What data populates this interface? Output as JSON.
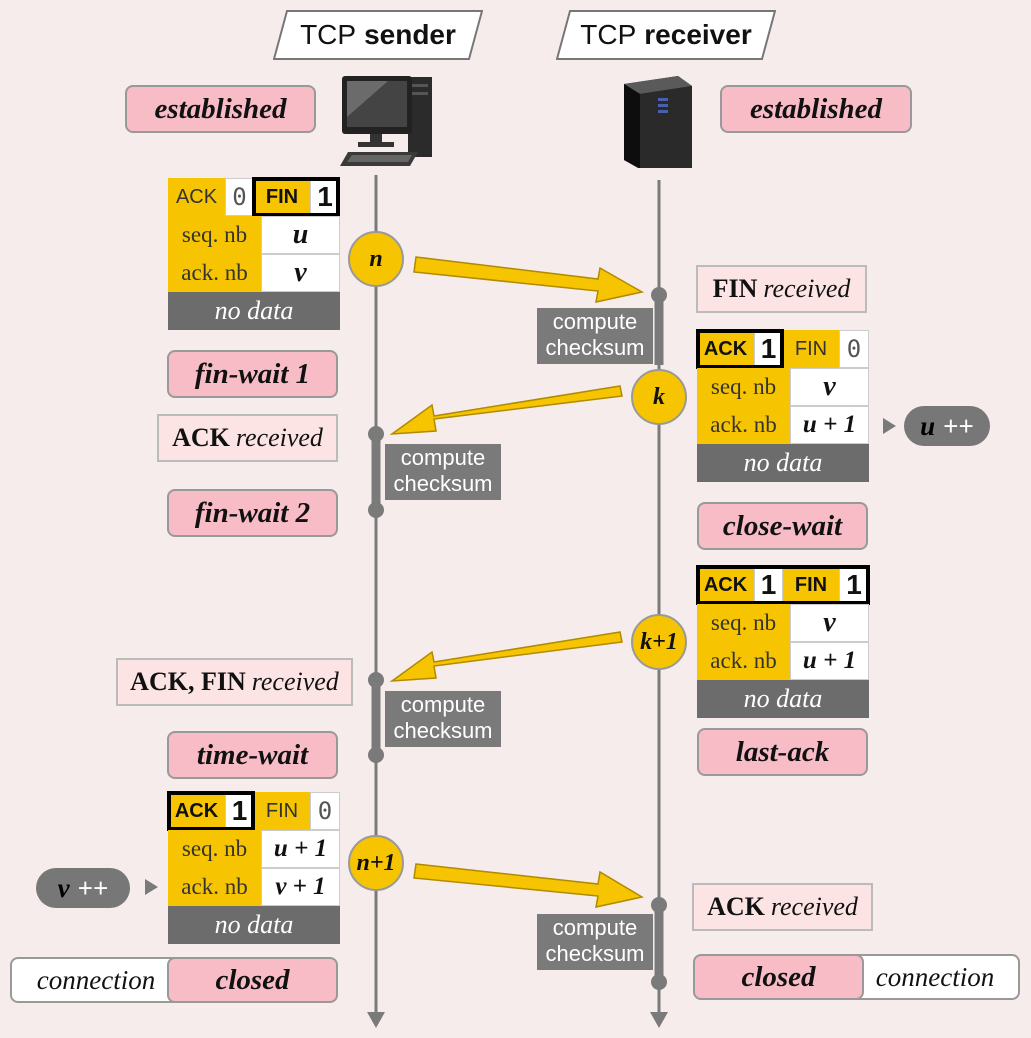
{
  "header": {
    "sender_prefix": "TCP",
    "sender_role": "sender",
    "receiver_prefix": "TCP",
    "receiver_role": "receiver"
  },
  "states": {
    "sender_established": "established",
    "receiver_established": "established",
    "fin_wait_1": "fin-wait 1",
    "fin_wait_2": "fin-wait 2",
    "close_wait": "close-wait",
    "time_wait": "time-wait",
    "last_ack": "last-ack",
    "sender_closed": "closed",
    "receiver_closed": "closed"
  },
  "connection_label": "connection",
  "received": {
    "fin": {
      "flag": "FIN",
      "word": "received"
    },
    "ack": {
      "flag": "ACK",
      "word": "received"
    },
    "ackfin": {
      "flag": "ACK, FIN",
      "word": "received"
    },
    "ack_final": {
      "flag": "ACK",
      "word": "received"
    }
  },
  "compute_checksum": {
    "line1": "compute",
    "line2": "checksum"
  },
  "packets": {
    "p1": {
      "ack_label": "ACK",
      "ack_val": "0",
      "fin_label": "FIN",
      "fin_val": "1",
      "seq_label": "seq. nb",
      "seq_val": "u",
      "ackn_label": "ack. nb",
      "ackn_val": "v",
      "data": "no data"
    },
    "p2": {
      "ack_label": "ACK",
      "ack_val": "1",
      "fin_label": "FIN",
      "fin_val": "0",
      "seq_label": "seq. nb",
      "seq_val": "v",
      "ackn_label": "ack. nb",
      "ackn_val": "u + 1",
      "data": "no data"
    },
    "p3": {
      "ack_label": "ACK",
      "ack_val": "1",
      "fin_label": "FIN",
      "fin_val": "1",
      "seq_label": "seq. nb",
      "seq_val": "v",
      "ackn_label": "ack. nb",
      "ackn_val": "u + 1",
      "data": "no data"
    },
    "p4": {
      "ack_label": "ACK",
      "ack_val": "1",
      "fin_label": "FIN",
      "fin_val": "0",
      "seq_label": "seq. nb",
      "seq_val": "u + 1",
      "ackn_label": "ack. nb",
      "ackn_val": "v + 1",
      "data": "no data"
    }
  },
  "segments": {
    "s1": "n",
    "s2": "k",
    "s3": "k+1",
    "s4": "n+1"
  },
  "increments": {
    "u": {
      "var": "u",
      "op": "++"
    },
    "v": {
      "var": "v",
      "op": "++"
    }
  },
  "icons": {
    "sender": "desktop-computer-icon",
    "receiver": "server-tower-icon"
  },
  "colors": {
    "background": "#f7ecec",
    "state_fill": "#f8bcc6",
    "field_yellow": "#f6c400",
    "arrow_yellow": "#f6c400",
    "timeline_gray": "#7a7a7a",
    "no_data_gray": "#6c6c6c"
  }
}
